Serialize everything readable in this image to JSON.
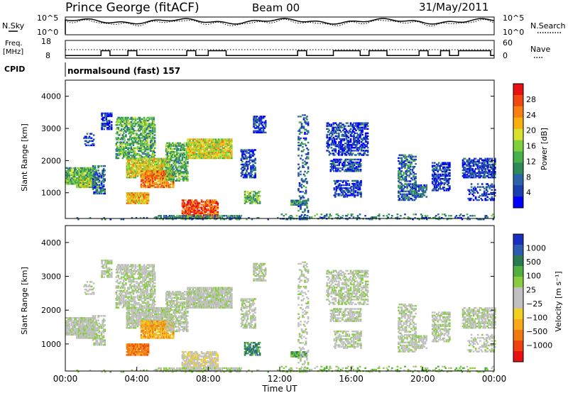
{
  "header": {
    "station": "Prince George (fitACF)",
    "beam": "Beam 00",
    "date": "31/May/2011"
  },
  "side_labels": {
    "nsky": "N.Sky",
    "freq_line1": "Freq.",
    "freq_line2": "[MHz]",
    "cpid": "CPID",
    "nsearch": "N.Search",
    "nave": "Nave"
  },
  "cpid_value": "normalsound (fast) 157",
  "chart_data": [
    {
      "type": "line",
      "panel": "noise",
      "series": [
        {
          "name": "N.Sky",
          "style": "solid"
        },
        {
          "name": "N.Search",
          "style": "dotted"
        }
      ],
      "yticks": [
        "10^5",
        "10^0"
      ],
      "yticks_right": [
        "10^5",
        "10^0"
      ]
    },
    {
      "type": "line",
      "panel": "frequency",
      "series": [
        {
          "name": "Freq.",
          "style": "solid",
          "x": [
            0,
            2,
            2,
            2.5,
            2.5,
            3.5,
            3.5,
            4,
            4,
            6.8,
            6.8,
            7.3,
            7.3,
            8,
            8,
            9,
            9,
            9.5,
            9.5,
            13,
            13,
            13.5,
            13.5,
            15,
            15,
            16.5,
            16.5,
            17,
            17,
            18,
            18,
            18.5,
            18.5,
            19.8,
            19.8,
            20.3,
            20.3,
            21,
            21,
            21.5,
            21.5,
            22,
            22,
            23.8,
            23.8,
            24
          ],
          "y": [
            9.5,
            9.5,
            12.2,
            12.2,
            9.5,
            9.5,
            12.2,
            12.2,
            9.5,
            9.5,
            12.2,
            12.2,
            9.5,
            9.5,
            12.2,
            12.2,
            9.5,
            9.5,
            9.5,
            9.5,
            12.2,
            12.2,
            9.5,
            9.5,
            12.2,
            12.2,
            9.5,
            9.5,
            12.2,
            12.2,
            9.5,
            9.5,
            9.5,
            9.5,
            12.2,
            12.2,
            9.5,
            9.5,
            12.2,
            12.2,
            9.5,
            9.5,
            12.2,
            12.2,
            9.5,
            9.5
          ]
        },
        {
          "name": "Nave",
          "style": "dotted"
        }
      ],
      "yticks": [
        18,
        8
      ],
      "yticks_right": [
        60,
        0
      ]
    },
    {
      "type": "heatmap",
      "panel": "power",
      "xlabel": "",
      "ylabel": "Slant Range [km]",
      "yticks": [
        1000,
        2000,
        3000,
        4000
      ],
      "ylim": [
        200,
        4500
      ],
      "xlim": [
        0,
        24
      ],
      "colorbar": {
        "label": "Power [dB]",
        "ticks": [
          4,
          8,
          12,
          16,
          20,
          24,
          28
        ],
        "colors": [
          "#0000ff",
          "#1c3fb0",
          "#2c63a8",
          "#2e8a5a",
          "#48b04a",
          "#7fd040",
          "#d8e030",
          "#f8b010",
          "#f88010",
          "#f04810",
          "#e81010"
        ]
      }
    },
    {
      "type": "heatmap",
      "panel": "velocity",
      "xlabel": "Time UT",
      "ylabel": "Slant Range [km]",
      "yticks": [
        1000,
        2000,
        3000,
        4000
      ],
      "ylim": [
        200,
        4500
      ],
      "xlim": [
        0,
        24
      ],
      "xticks": [
        "00:00",
        "04:00",
        "08:00",
        "12:00",
        "16:00",
        "20:00",
        "00:00"
      ],
      "colorbar": {
        "label": "Velocity [m s⁻¹]",
        "ticks": [
          "1000",
          "500",
          "100",
          "25",
          "−25",
          "−100",
          "−500",
          "−1000"
        ],
        "colors": [
          "#1830c0",
          "#2c5cb0",
          "#2a7a50",
          "#52b040",
          "#88cc40",
          "#c0c0c0",
          "#c0c0c0",
          "#f0d020",
          "#f8a818",
          "#f07a10",
          "#f04010",
          "#e81010"
        ]
      }
    }
  ]
}
